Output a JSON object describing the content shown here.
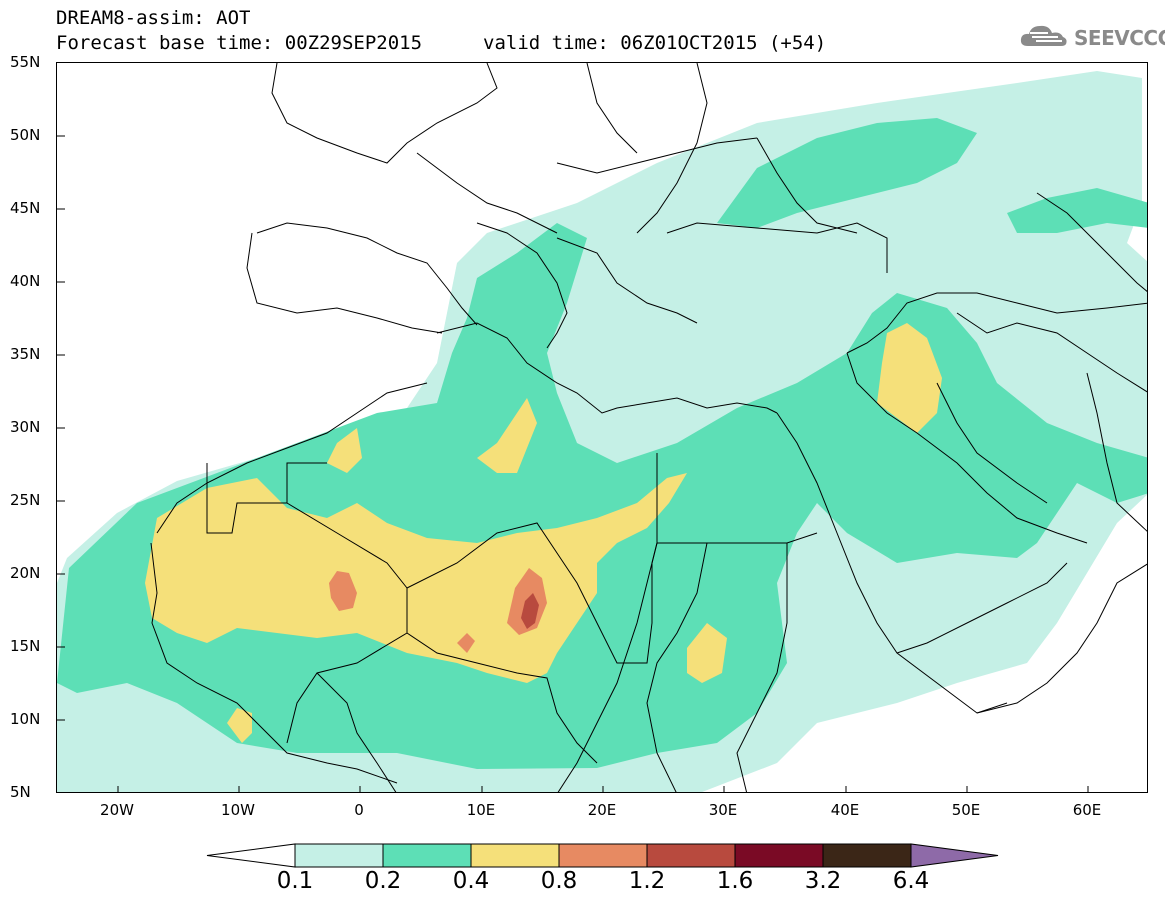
{
  "header": {
    "title": "DREAM8-assim: AOT",
    "base_time": "Forecast base time: 00Z29SEP2015",
    "valid_time": "valid time: 06Z01OCT2015 (+54)"
  },
  "logo": {
    "text": "SEEVCCC",
    "icon": "cloud-icon"
  },
  "map": {
    "lat_labels": [
      "55N",
      "50N",
      "45N",
      "40N",
      "35N",
      "30N",
      "25N",
      "20N",
      "15N",
      "10N",
      "5N"
    ],
    "lon_labels": [
      "20W",
      "10W",
      "0",
      "10E",
      "20E",
      "30E",
      "40E",
      "50E",
      "60E"
    ],
    "extent": {
      "lon_min": -25,
      "lon_max": 65,
      "lat_min": 5,
      "lat_max": 55
    }
  },
  "legend": {
    "levels": [
      "0.1",
      "0.2",
      "0.4",
      "0.8",
      "1.2",
      "1.6",
      "3.2",
      "6.4"
    ],
    "colors": [
      "#ffffff",
      "#c5f0e6",
      "#5ddfb6",
      "#f5e07a",
      "#e78a62",
      "#b84a3e",
      "#7a0a25",
      "#3b2617",
      "#8e6aa8"
    ]
  }
}
